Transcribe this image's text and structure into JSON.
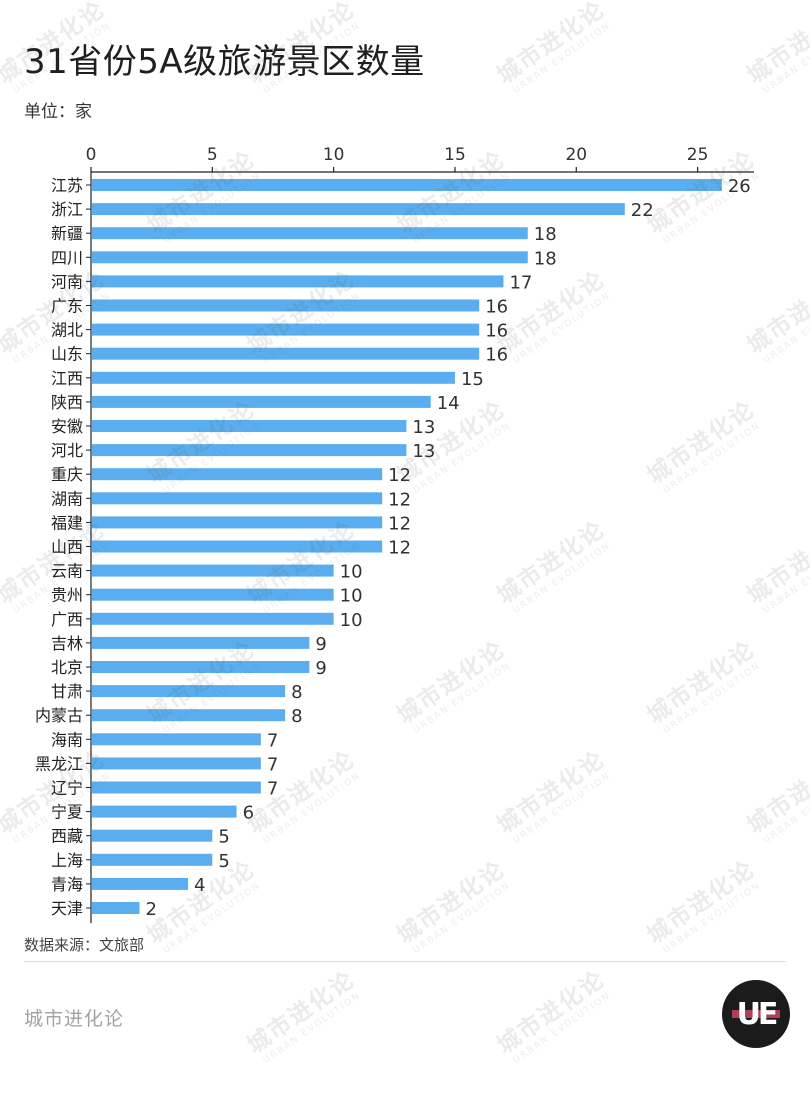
{
  "header": {
    "title": "31省份5A级旅游景区数量",
    "unit": "单位：家"
  },
  "footer": {
    "source": "数据来源：文旅部",
    "brand": "城市进化论",
    "logo_text": "UE"
  },
  "watermark": {
    "text": "城市进化论",
    "subtext": "URBAN EVOLUTION"
  },
  "colors": {
    "bar": "#5aaeef",
    "axis": "#222222"
  },
  "chart_data": {
    "type": "bar",
    "orientation": "horizontal",
    "title": "31省份5A级旅游景区数量",
    "xlabel": "",
    "ylabel": "",
    "unit": "单位：家",
    "xlim": [
      0,
      26.5
    ],
    "ticks": [
      0,
      5,
      10,
      15,
      20,
      25
    ],
    "axis_position": "top",
    "grid": false,
    "categories": [
      "江苏",
      "浙江",
      "新疆",
      "四川",
      "河南",
      "广东",
      "湖北",
      "山东",
      "江西",
      "陕西",
      "安徽",
      "河北",
      "重庆",
      "湖南",
      "福建",
      "山西",
      "云南",
      "贵州",
      "广西",
      "吉林",
      "北京",
      "甘肃",
      "内蒙古",
      "海南",
      "黑龙江",
      "辽宁",
      "宁夏",
      "西藏",
      "上海",
      "青海",
      "天津"
    ],
    "values": [
      26,
      22,
      18,
      18,
      17,
      16,
      16,
      16,
      15,
      14,
      13,
      13,
      12,
      12,
      12,
      12,
      10,
      10,
      10,
      9,
      9,
      8,
      8,
      7,
      7,
      7,
      6,
      5,
      5,
      4,
      2
    ]
  }
}
